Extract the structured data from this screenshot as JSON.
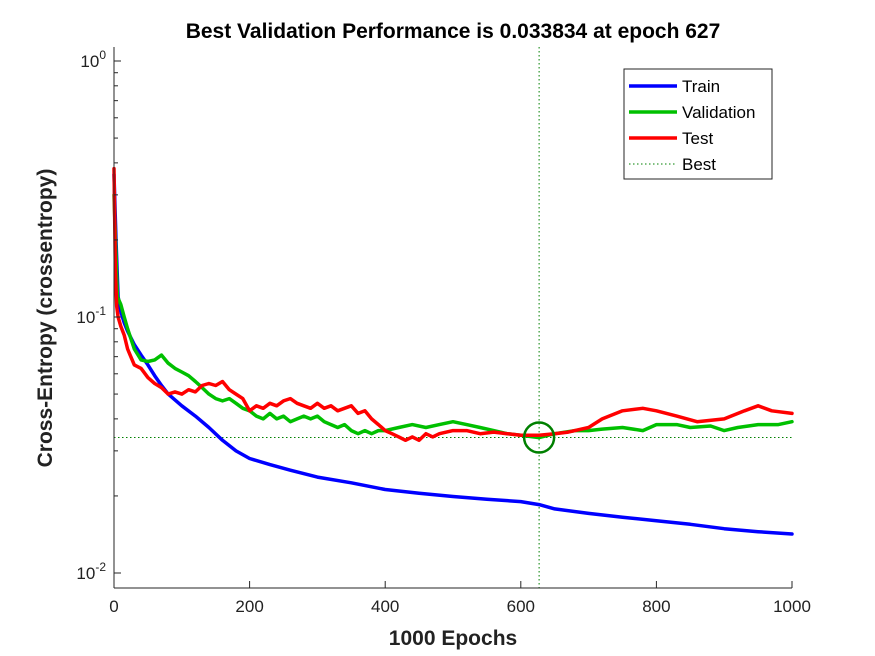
{
  "chart_data": {
    "type": "line",
    "title": "Best Validation Performance is 0.033834 at epoch 627",
    "xlabel": "1000 Epochs",
    "ylabel": "Cross-Entropy  (crossentropy)",
    "xlim": [
      0,
      1000
    ],
    "ylim": [
      0.008,
      1.05
    ],
    "yscale": "log",
    "xticks": [
      0,
      200,
      400,
      600,
      800,
      1000
    ],
    "yticks": [
      {
        "base": "10",
        "exp": "0",
        "value": 1
      },
      {
        "base": "10",
        "exp": "-1",
        "value": 0.1
      },
      {
        "base": "10",
        "exp": "-2",
        "value": 0.01
      }
    ],
    "legend_position": "top-right",
    "best": {
      "epoch": 627,
      "value": 0.033834,
      "color": "#008000"
    },
    "series": [
      {
        "name": "Train",
        "color": "#0000ff",
        "x": [
          0,
          3,
          6,
          10,
          15,
          20,
          30,
          40,
          50,
          60,
          70,
          80,
          100,
          120,
          140,
          160,
          180,
          200,
          230,
          260,
          300,
          350,
          400,
          450,
          500,
          550,
          600,
          627,
          650,
          700,
          750,
          800,
          850,
          900,
          950,
          1000
        ],
        "y": [
          0.36,
          0.2,
          0.12,
          0.105,
          0.095,
          0.088,
          0.078,
          0.071,
          0.065,
          0.059,
          0.054,
          0.05,
          0.045,
          0.041,
          0.037,
          0.033,
          0.03,
          0.028,
          0.0265,
          0.0252,
          0.0237,
          0.0225,
          0.0212,
          0.0205,
          0.0199,
          0.0194,
          0.019,
          0.0185,
          0.0178,
          0.0171,
          0.0165,
          0.016,
          0.0155,
          0.0149,
          0.0145,
          0.0142
        ]
      },
      {
        "name": "Validation",
        "color": "#00c000",
        "x": [
          0,
          5,
          10,
          15,
          20,
          30,
          40,
          50,
          60,
          70,
          80,
          90,
          100,
          110,
          120,
          130,
          140,
          150,
          160,
          170,
          180,
          190,
          200,
          210,
          220,
          230,
          240,
          250,
          260,
          270,
          280,
          290,
          300,
          310,
          320,
          330,
          340,
          350,
          360,
          370,
          380,
          390,
          400,
          420,
          440,
          460,
          480,
          500,
          520,
          540,
          560,
          580,
          600,
          627,
          650,
          680,
          700,
          720,
          750,
          780,
          800,
          830,
          850,
          880,
          900,
          920,
          950,
          980,
          1000
        ],
        "y": [
          0.3,
          0.12,
          0.112,
          0.1,
          0.09,
          0.075,
          0.068,
          0.067,
          0.068,
          0.071,
          0.066,
          0.063,
          0.061,
          0.059,
          0.056,
          0.053,
          0.05,
          0.048,
          0.047,
          0.048,
          0.046,
          0.044,
          0.043,
          0.041,
          0.04,
          0.042,
          0.04,
          0.041,
          0.039,
          0.04,
          0.041,
          0.04,
          0.041,
          0.039,
          0.038,
          0.037,
          0.038,
          0.036,
          0.035,
          0.036,
          0.035,
          0.036,
          0.036,
          0.037,
          0.038,
          0.037,
          0.038,
          0.039,
          0.038,
          0.037,
          0.036,
          0.035,
          0.0345,
          0.0338,
          0.035,
          0.036,
          0.036,
          0.0365,
          0.037,
          0.036,
          0.038,
          0.038,
          0.037,
          0.0375,
          0.036,
          0.037,
          0.038,
          0.038,
          0.039
        ]
      },
      {
        "name": "Test",
        "color": "#ff0000",
        "x": [
          0,
          2,
          4,
          6,
          8,
          10,
          15,
          20,
          30,
          40,
          50,
          60,
          70,
          80,
          90,
          100,
          110,
          120,
          130,
          140,
          150,
          160,
          170,
          180,
          190,
          200,
          210,
          220,
          230,
          240,
          250,
          260,
          270,
          280,
          290,
          300,
          310,
          320,
          330,
          340,
          350,
          360,
          370,
          380,
          390,
          400,
          410,
          420,
          430,
          440,
          450,
          460,
          470,
          480,
          500,
          520,
          540,
          560,
          580,
          600,
          627,
          650,
          670,
          700,
          720,
          750,
          780,
          800,
          830,
          860,
          900,
          930,
          950,
          970,
          1000
        ],
        "y": [
          0.38,
          0.15,
          0.11,
          0.1,
          0.096,
          0.092,
          0.085,
          0.075,
          0.065,
          0.063,
          0.058,
          0.055,
          0.053,
          0.05,
          0.051,
          0.05,
          0.052,
          0.051,
          0.054,
          0.055,
          0.054,
          0.056,
          0.052,
          0.05,
          0.048,
          0.043,
          0.045,
          0.044,
          0.046,
          0.045,
          0.047,
          0.048,
          0.046,
          0.045,
          0.044,
          0.046,
          0.044,
          0.045,
          0.043,
          0.044,
          0.045,
          0.042,
          0.043,
          0.04,
          0.038,
          0.036,
          0.035,
          0.034,
          0.033,
          0.034,
          0.033,
          0.035,
          0.034,
          0.035,
          0.036,
          0.036,
          0.035,
          0.0355,
          0.035,
          0.0345,
          0.0345,
          0.035,
          0.0355,
          0.037,
          0.04,
          0.043,
          0.044,
          0.043,
          0.041,
          0.039,
          0.04,
          0.043,
          0.045,
          0.043,
          0.042
        ]
      }
    ],
    "legend": [
      {
        "label": "Train",
        "color": "#0000ff",
        "style": "solid"
      },
      {
        "label": "Validation",
        "color": "#00c000",
        "style": "solid"
      },
      {
        "label": "Test",
        "color": "#ff0000",
        "style": "solid"
      },
      {
        "label": "Best",
        "color": "#008000",
        "style": "dotted"
      }
    ]
  }
}
